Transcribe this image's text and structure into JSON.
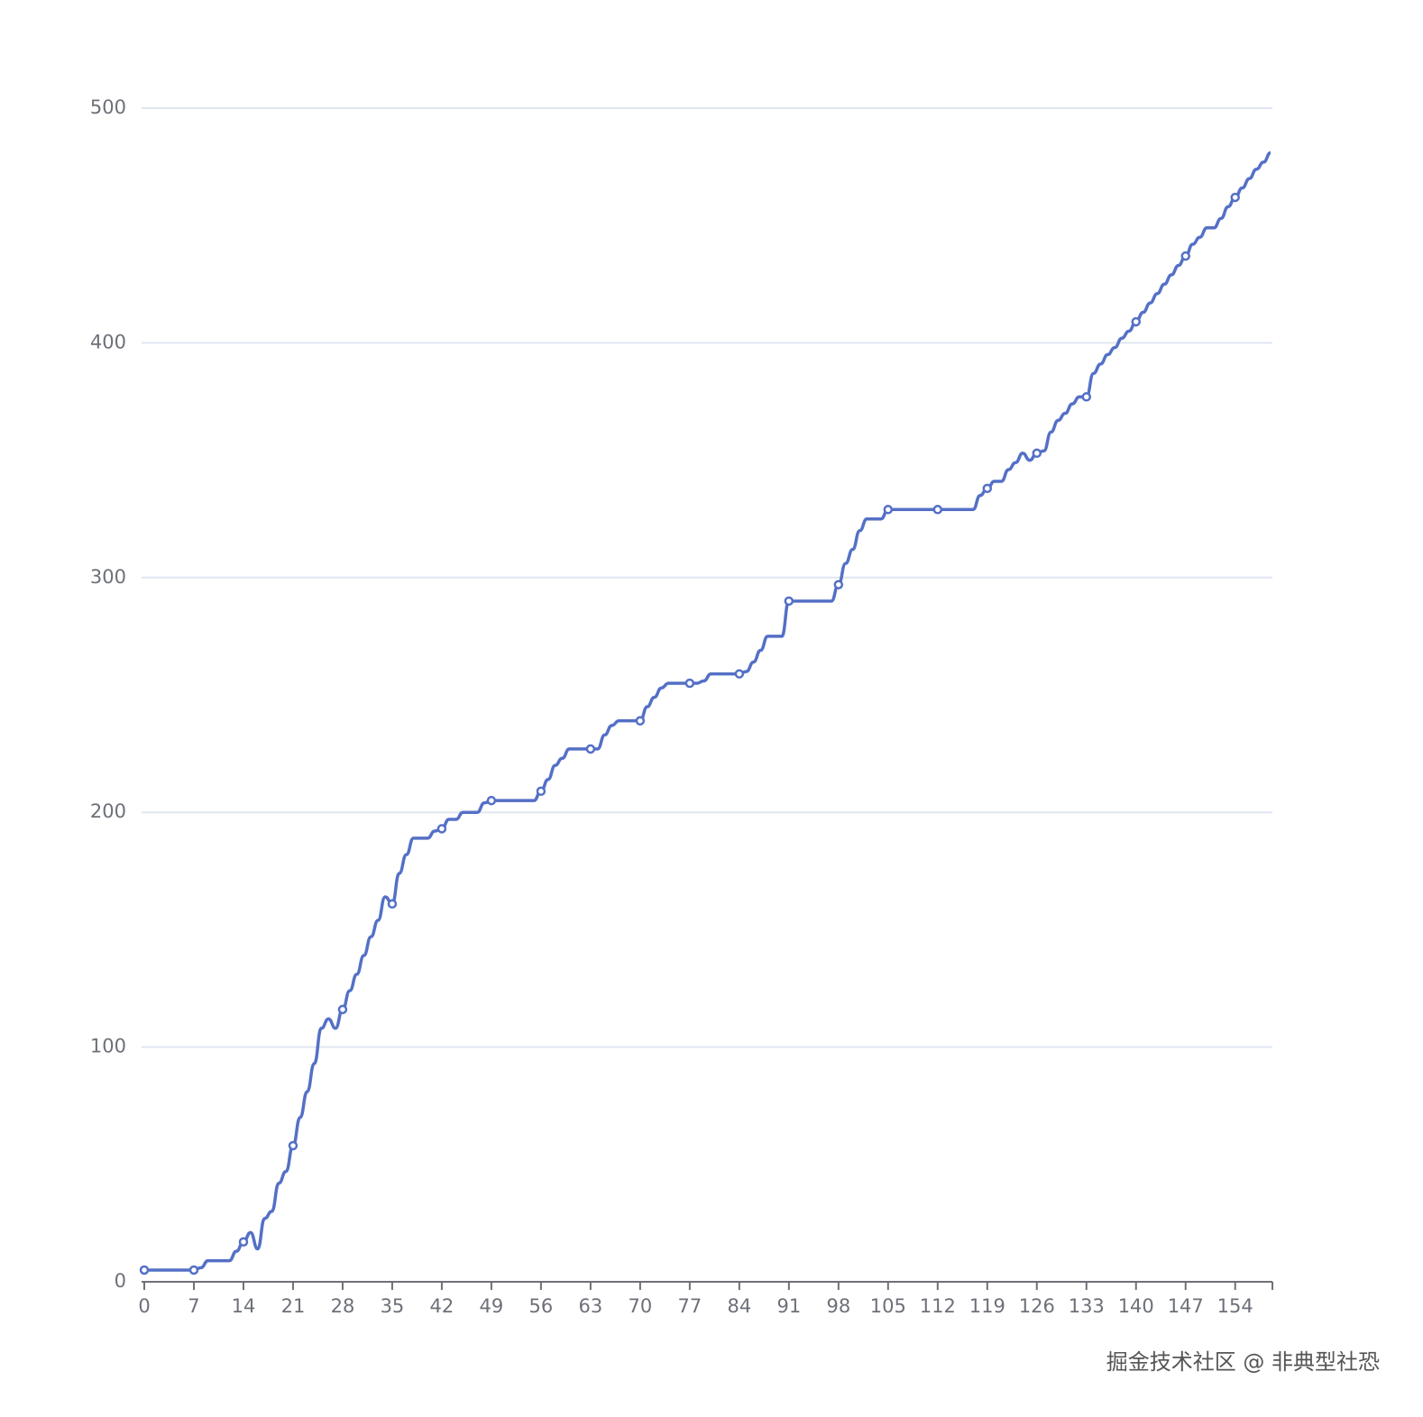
{
  "chart_data": {
    "type": "line",
    "x": [
      0,
      1,
      2,
      3,
      4,
      5,
      6,
      7,
      8,
      9,
      10,
      11,
      12,
      13,
      14,
      15,
      16,
      17,
      18,
      19,
      20,
      21,
      22,
      23,
      24,
      25,
      26,
      27,
      28,
      29,
      30,
      31,
      32,
      33,
      34,
      35,
      36,
      37,
      38,
      39,
      40,
      41,
      42,
      43,
      44,
      45,
      46,
      47,
      48,
      49,
      50,
      51,
      52,
      53,
      54,
      55,
      56,
      57,
      58,
      59,
      60,
      61,
      62,
      63,
      64,
      65,
      66,
      67,
      68,
      69,
      70,
      71,
      72,
      73,
      74,
      75,
      76,
      77,
      78,
      79,
      80,
      81,
      82,
      83,
      84,
      85,
      86,
      87,
      88,
      89,
      90,
      91,
      92,
      93,
      94,
      95,
      96,
      97,
      98,
      99,
      100,
      101,
      102,
      103,
      104,
      105,
      106,
      107,
      108,
      109,
      110,
      111,
      112,
      113,
      114,
      115,
      116,
      117,
      118,
      119,
      120,
      121,
      122,
      123,
      124,
      125,
      126,
      127,
      128,
      129,
      130,
      131,
      132,
      133,
      134,
      135,
      136,
      137,
      138,
      139,
      140,
      141,
      142,
      143,
      144,
      145,
      146,
      147,
      148,
      149,
      150,
      151,
      152,
      153,
      154,
      155,
      156,
      157,
      158,
      159
    ],
    "series": [
      {
        "color": "#5470c6",
        "values": [
          5,
          5,
          5,
          5,
          5,
          5,
          5,
          5,
          6,
          9,
          9,
          9,
          9,
          13,
          17,
          21,
          14,
          27,
          30,
          42,
          47,
          58,
          70,
          81,
          93,
          108,
          112,
          108,
          116,
          124,
          131,
          139,
          147,
          154,
          164,
          161,
          174,
          182,
          189,
          189,
          189,
          192,
          193,
          197,
          197,
          200,
          200,
          200,
          204,
          205,
          205,
          205,
          205,
          205,
          205,
          205,
          209,
          214,
          220,
          223,
          227,
          227,
          227,
          227,
          227,
          233,
          237,
          239,
          239,
          239,
          239,
          245,
          249,
          253,
          255,
          255,
          255,
          255,
          255,
          256,
          259,
          259,
          259,
          259,
          259,
          260,
          264,
          269,
          275,
          275,
          275,
          290,
          290,
          290,
          290,
          290,
          290,
          290,
          297,
          306,
          312,
          320,
          325,
          325,
          325,
          329,
          329,
          329,
          329,
          329,
          329,
          329,
          329,
          329,
          329,
          329,
          329,
          329,
          335,
          338,
          341,
          341,
          346,
          349,
          353,
          350,
          353,
          354,
          362,
          367,
          370,
          374,
          377,
          377,
          387,
          391,
          395,
          398,
          402,
          405,
          409,
          413,
          417,
          421,
          425,
          429,
          433,
          437,
          442,
          445,
          449,
          449,
          453,
          458,
          462,
          466,
          470,
          474,
          477,
          481
        ]
      }
    ],
    "xlim": [
      0,
      159
    ],
    "xticks": [
      0,
      7,
      14,
      21,
      28,
      35,
      42,
      49,
      56,
      63,
      70,
      77,
      84,
      91,
      98,
      105,
      112,
      119,
      126,
      133,
      140,
      147,
      154
    ],
    "ylim": [
      0,
      500
    ],
    "yticks": [
      0,
      100,
      200,
      300,
      400,
      500
    ],
    "grid": true,
    "watermark": "掘金技术社区 @ 非典型社恐"
  }
}
